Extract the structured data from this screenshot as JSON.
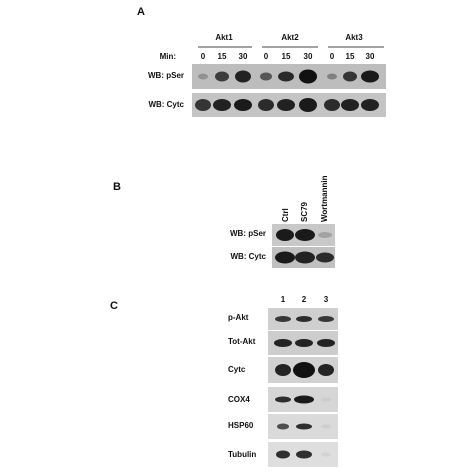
{
  "panel_a": {
    "label": "A",
    "groups": [
      "Akt1",
      "Akt2",
      "Akt3"
    ],
    "time_label": "Min:",
    "times": [
      "0",
      "15",
      "30",
      "0",
      "15",
      "30",
      "0",
      "15",
      "30"
    ],
    "rows": [
      "WB: pSer",
      "WB: Cytc"
    ]
  },
  "panel_b": {
    "label": "B",
    "columns": [
      "Ctrl",
      "SC79",
      "Wortmannin"
    ],
    "rows": [
      "WB: pSer",
      "WB: Cytc"
    ]
  },
  "panel_c": {
    "label": "C",
    "lanes": [
      "1",
      "2",
      "3"
    ],
    "rows": [
      "p-Akt",
      "Tot-Akt",
      "Cytc",
      "COX4",
      "HSP60",
      "Tubulin"
    ]
  }
}
